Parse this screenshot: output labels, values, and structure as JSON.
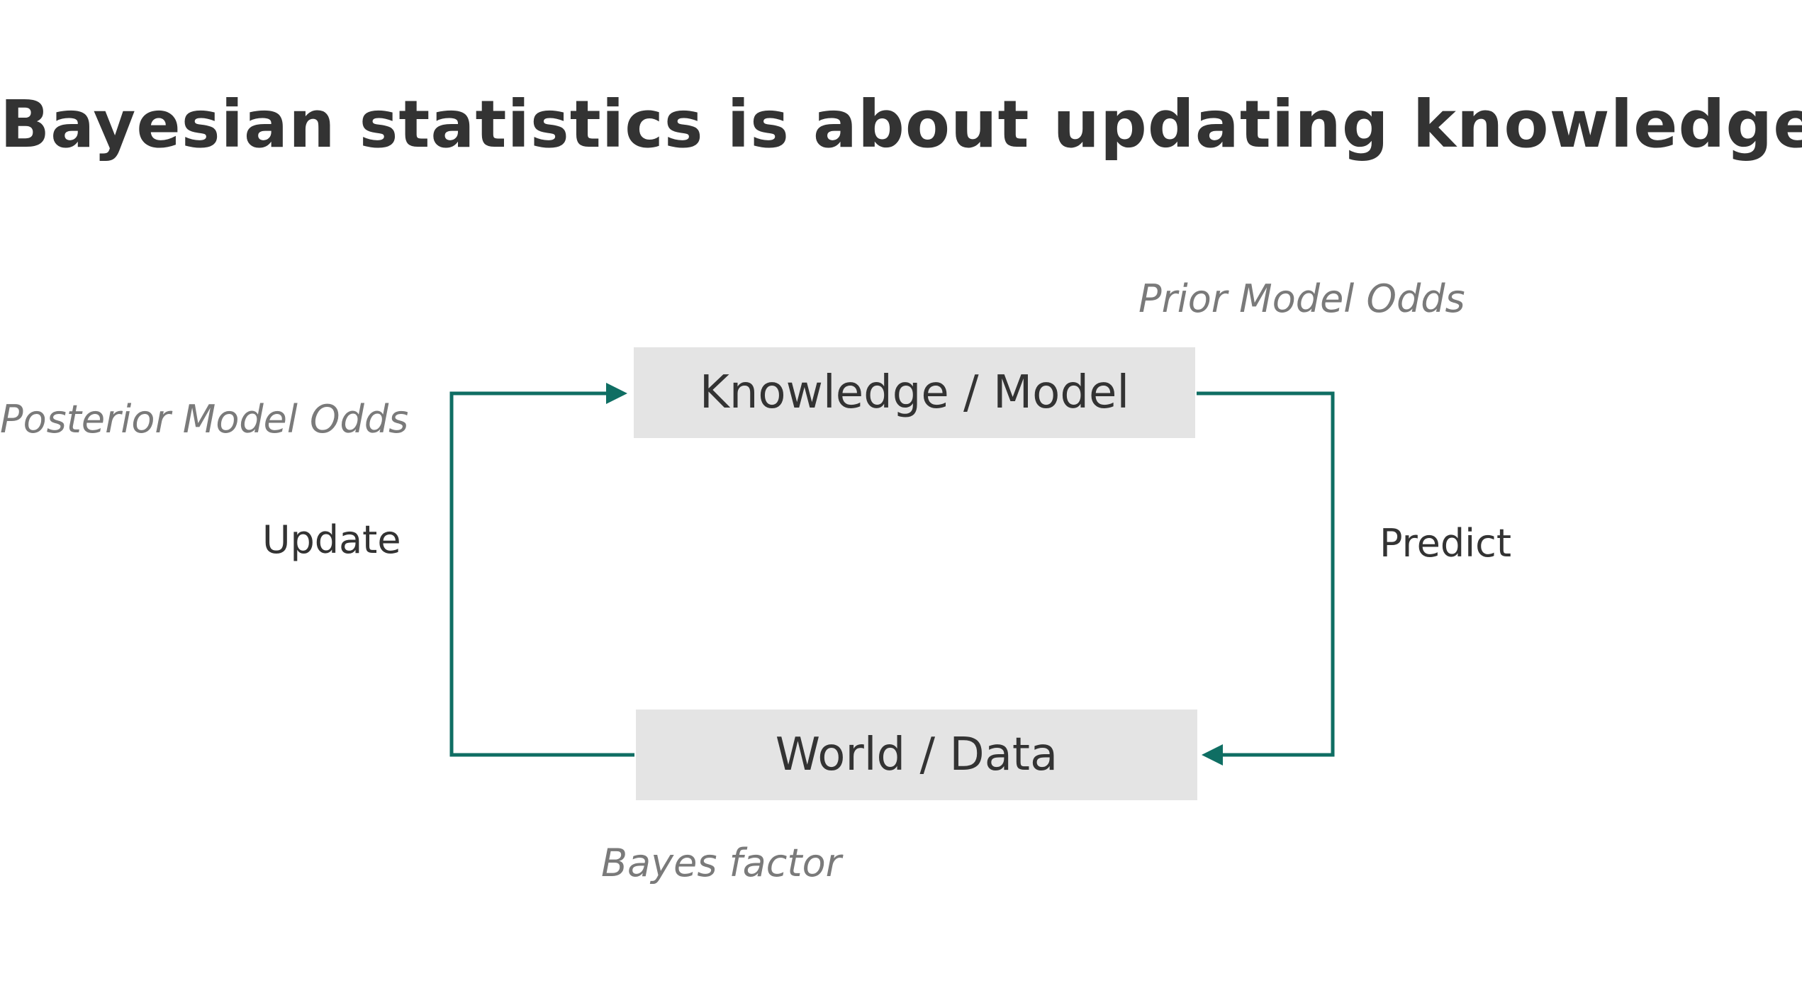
{
  "title": "Bayesian statistics is about updating knowledge",
  "nodes": {
    "knowledge": "Knowledge / Model",
    "world": "World / Data"
  },
  "labels": {
    "prior": "Prior Model Odds",
    "posterior": "Posterior Model Odds",
    "update": "Update",
    "predict": "Predict",
    "bayes_factor": "Bayes factor"
  },
  "colors": {
    "connector": "#0f6e63",
    "box_fill": "#e4e4e4",
    "title_text": "#333333",
    "italic_text": "#7a7a7a"
  }
}
